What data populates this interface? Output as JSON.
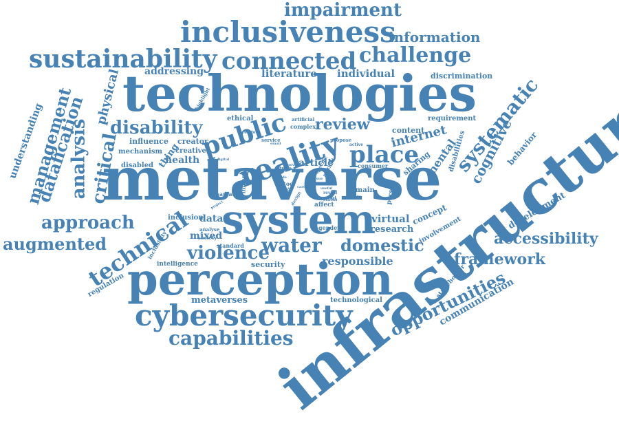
{
  "color": "#4682b4",
  "words": [
    {
      "text": "infrastructure",
      "weight": 100
    },
    {
      "text": "metaverse",
      "weight": 96
    },
    {
      "text": "technologies",
      "weight": 88
    },
    {
      "text": "perception",
      "weight": 74
    },
    {
      "text": "system",
      "weight": 70
    },
    {
      "text": "reality",
      "weight": 56
    },
    {
      "text": "cybersecurity",
      "weight": 55
    },
    {
      "text": "inclusiveness",
      "weight": 54
    },
    {
      "text": "public",
      "weight": 52
    },
    {
      "text": "connected",
      "weight": 50
    },
    {
      "text": "sustainability",
      "weight": 48
    },
    {
      "text": "technical",
      "weight": 46
    },
    {
      "text": "place",
      "weight": 45
    },
    {
      "text": "challenge",
      "weight": 44
    },
    {
      "text": "systematic",
      "weight": 42
    },
    {
      "text": "disability",
      "weight": 40
    },
    {
      "text": "water",
      "weight": 40
    },
    {
      "text": "capabilities",
      "weight": 40
    },
    {
      "text": "opportunities",
      "weight": 40
    },
    {
      "text": "violence",
      "weight": 38
    },
    {
      "text": "approach",
      "weight": 38
    },
    {
      "text": "management",
      "weight": 38
    },
    {
      "text": "domestic",
      "weight": 36
    },
    {
      "text": "analysis",
      "weight": 36
    },
    {
      "text": "datafication",
      "weight": 36
    },
    {
      "text": "critical",
      "weight": 36
    },
    {
      "text": "augmented",
      "weight": 34
    },
    {
      "text": "accessibility",
      "weight": 34
    },
    {
      "text": "impairment",
      "weight": 32
    },
    {
      "text": "cognitive",
      "weight": 32
    },
    {
      "text": "framework",
      "weight": 30
    },
    {
      "text": "information",
      "weight": 28
    },
    {
      "text": "review",
      "weight": 28
    },
    {
      "text": "internet",
      "weight": 28
    },
    {
      "text": "physical",
      "weight": 26
    },
    {
      "text": "responsible",
      "weight": 24
    },
    {
      "text": "mental",
      "weight": 22
    },
    {
      "text": "virtual",
      "weight": 22
    },
    {
      "text": "communication",
      "weight": 20
    },
    {
      "text": "development",
      "weight": 20
    },
    {
      "text": "understanding",
      "weight": 20
    },
    {
      "text": "literature",
      "weight": 20
    },
    {
      "text": "individual",
      "weight": 20
    },
    {
      "text": "addressing",
      "weight": 20
    },
    {
      "text": "article",
      "weight": 20
    },
    {
      "text": "health",
      "weight": 20
    },
    {
      "text": "data",
      "weight": 20
    },
    {
      "text": "mixed",
      "weight": 18
    },
    {
      "text": "research",
      "weight": 18
    },
    {
      "text": "concept",
      "weight": 18
    },
    {
      "text": "metaverses",
      "weight": 18
    },
    {
      "text": "behavior",
      "weight": 18
    },
    {
      "text": "sharing",
      "weight": 16
    },
    {
      "text": "security",
      "weight": 16
    },
    {
      "text": "content",
      "weight": 16
    },
    {
      "text": "involvement",
      "weight": 16
    },
    {
      "text": "disabilities",
      "weight": 16
    },
    {
      "text": "discrimination",
      "weight": 16
    },
    {
      "text": "influence",
      "weight": 16
    },
    {
      "text": "creator",
      "weight": 16
    },
    {
      "text": "thing",
      "weight": 16
    },
    {
      "text": "creative",
      "weight": 14
    },
    {
      "text": "technological",
      "weight": 14
    },
    {
      "text": "regulation",
      "weight": 14
    },
    {
      "text": "inclusion",
      "weight": 14
    },
    {
      "text": "remain",
      "weight": 14
    },
    {
      "text": "mechanism",
      "weight": 14
    },
    {
      "text": "disabled",
      "weight": 14
    },
    {
      "text": "ethical",
      "weight": 14
    },
    {
      "text": "requirement",
      "weight": 14
    },
    {
      "text": "stakeholder",
      "weight": 12
    },
    {
      "text": "intelligence",
      "weight": 12
    },
    {
      "text": "person",
      "weight": 12
    },
    {
      "text": "affect",
      "weight": 12
    },
    {
      "text": "inclusivity",
      "weight": 12
    },
    {
      "text": "complex",
      "weight": 12
    },
    {
      "text": "consumer",
      "weight": 10
    },
    {
      "text": "artificial",
      "weight": 10
    },
    {
      "text": "standard",
      "weight": 10
    },
    {
      "text": "narrative",
      "weight": 10
    },
    {
      "text": "impact",
      "weight": 10
    },
    {
      "text": "gender",
      "weight": 10
    },
    {
      "text": "society",
      "weight": 10
    },
    {
      "text": "analyse",
      "weight": 10
    },
    {
      "text": "service",
      "weight": 10
    },
    {
      "text": "highlight",
      "weight": 10
    },
    {
      "text": "tool",
      "weight": 10
    },
    {
      "text": "study",
      "weight": 10
    },
    {
      "text": "specific",
      "weight": 8
    },
    {
      "text": "method",
      "weight": 8
    },
    {
      "text": "current",
      "weight": 8
    },
    {
      "text": "propose",
      "weight": 8
    },
    {
      "text": "related",
      "weight": 8
    },
    {
      "text": "inclusive",
      "weight": 8
    },
    {
      "text": "design",
      "weight": 8
    },
    {
      "text": "reveal",
      "weight": 8
    },
    {
      "text": "status",
      "weight": 8
    },
    {
      "text": "enable",
      "weight": 8
    },
    {
      "text": "active",
      "weight": 8
    },
    {
      "text": "email",
      "weight": 6
    },
    {
      "text": "digital",
      "weight": 6
    },
    {
      "text": "novel",
      "weight": 6
    },
    {
      "text": "issue",
      "weight": 6
    },
    {
      "text": "user",
      "weight": 6
    },
    {
      "text": "project",
      "weight": 6
    },
    {
      "text": "useful",
      "weight": 6
    },
    {
      "text": "care",
      "weight": 6
    },
    {
      "text": "wide",
      "weight": 6
    }
  ]
}
